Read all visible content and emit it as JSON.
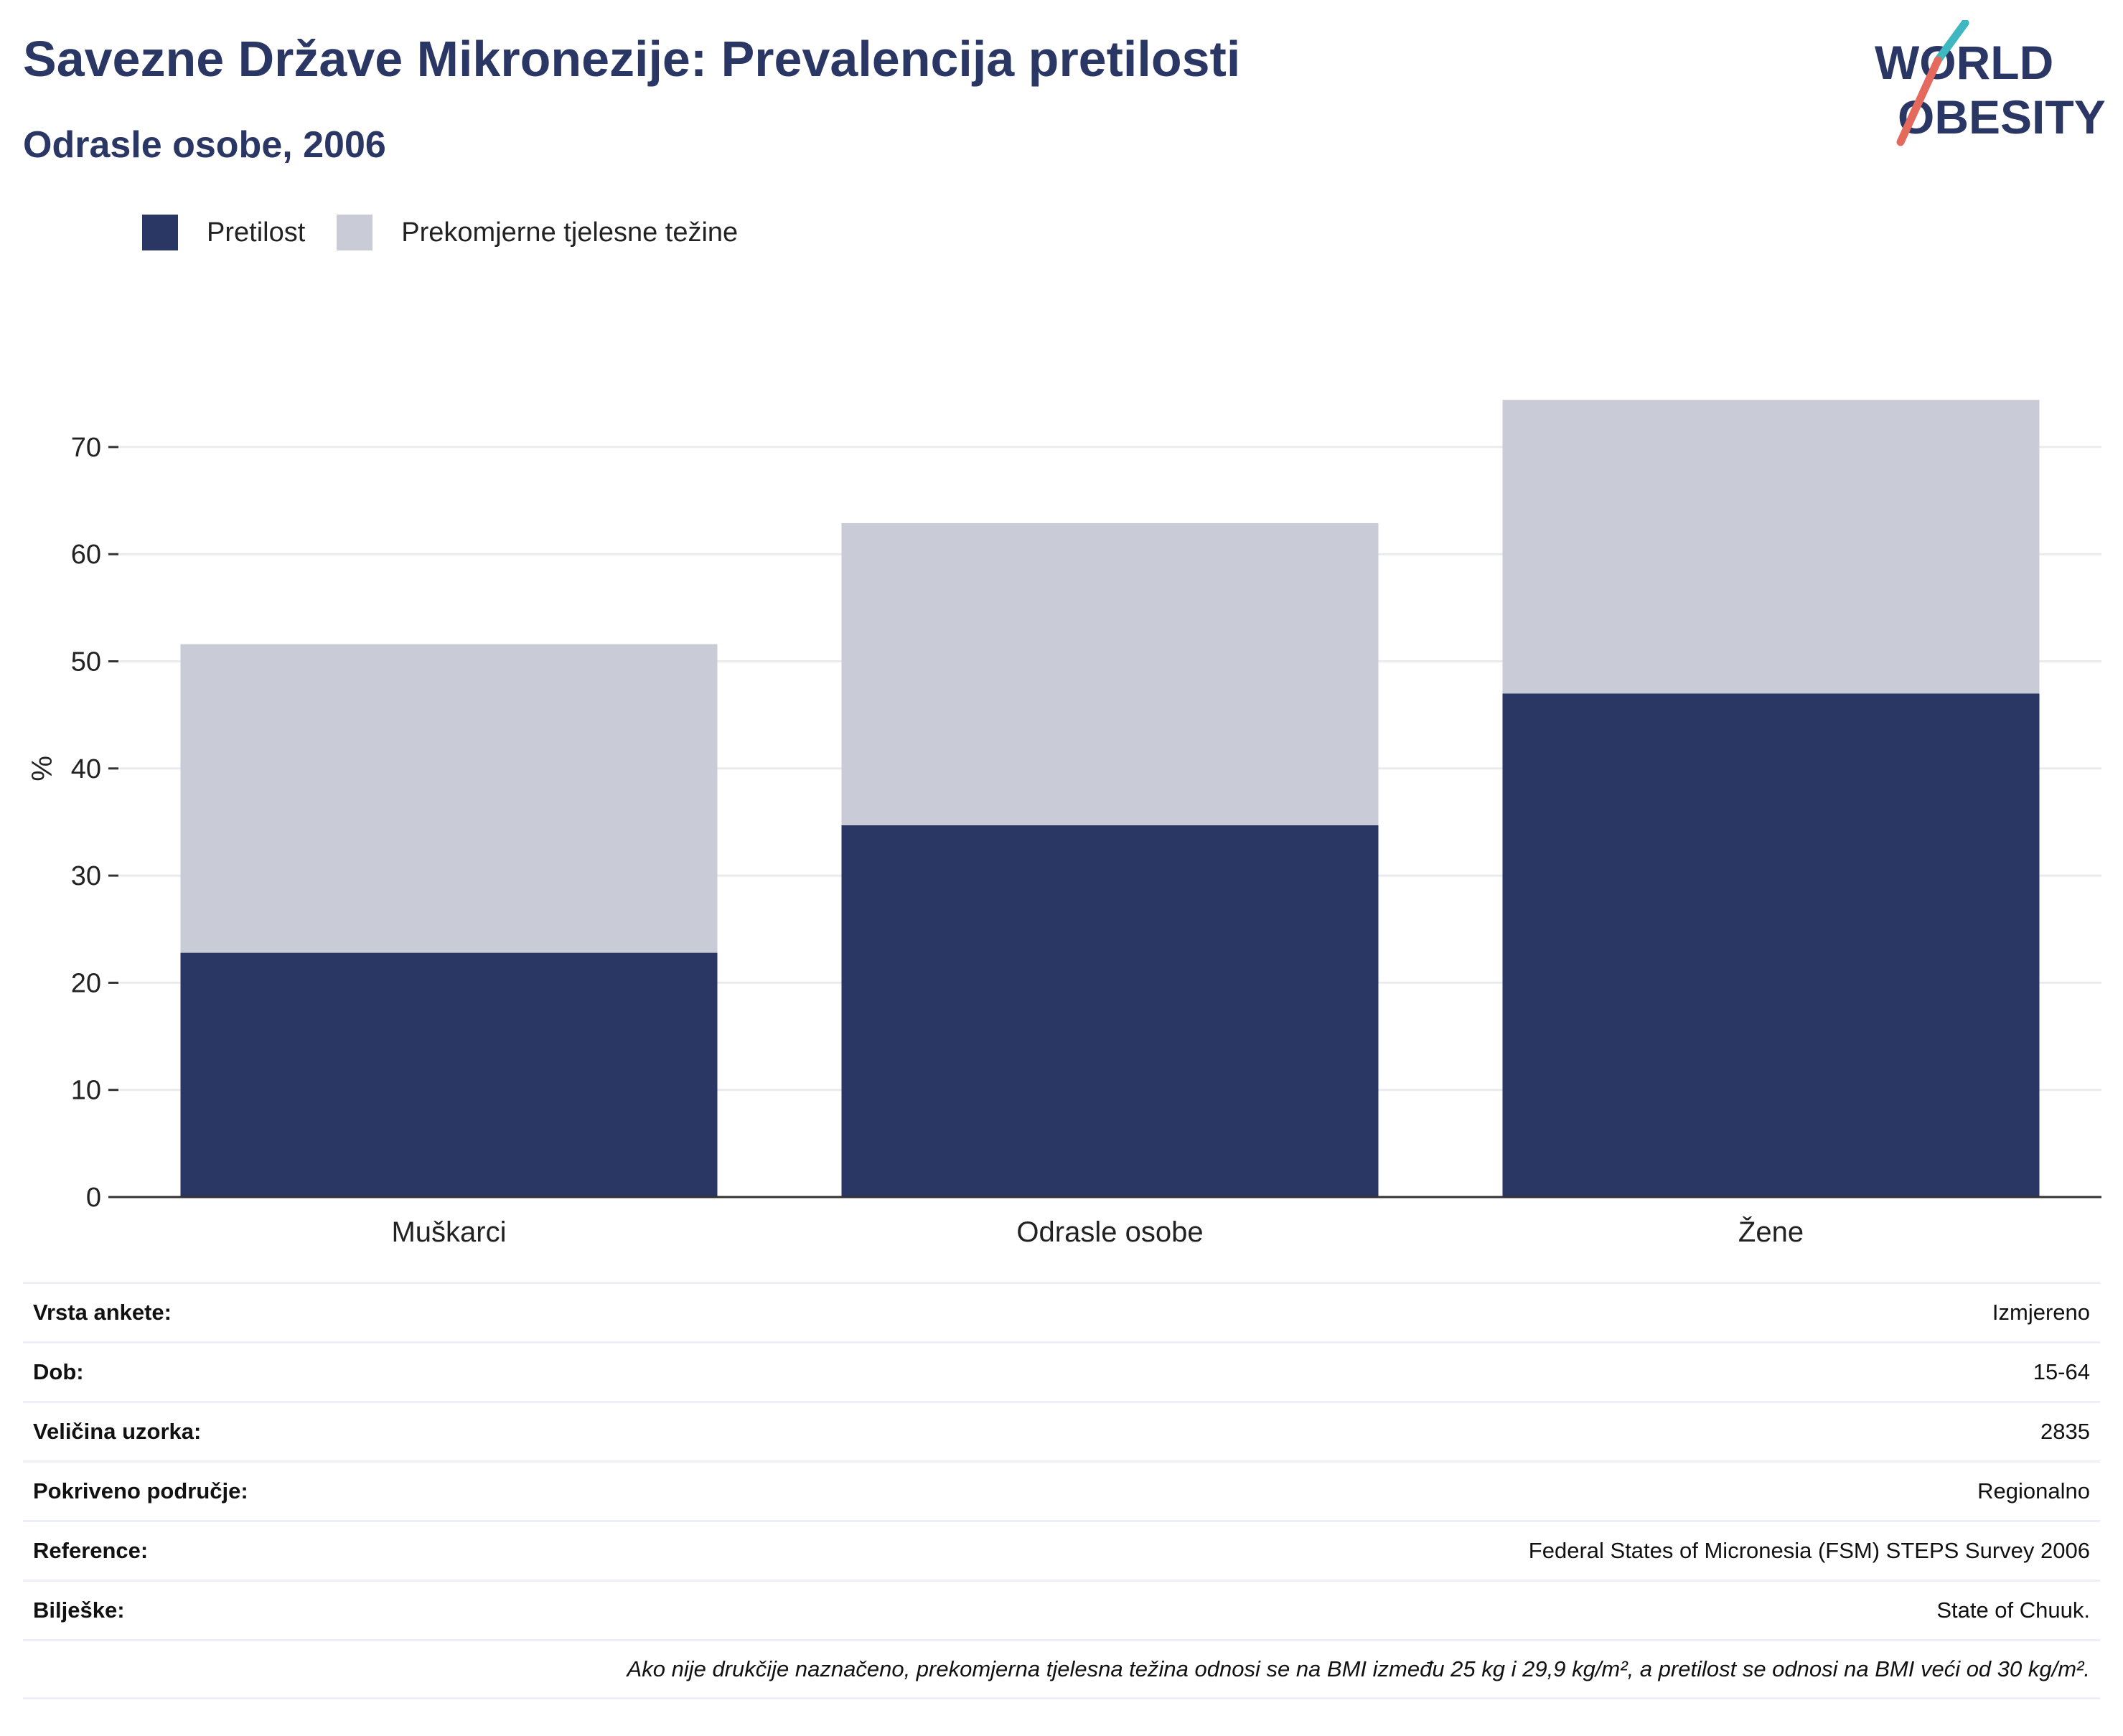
{
  "header": {
    "title": "Savezne Države Mikronezije: Prevalencija pretilosti",
    "subtitle": "Odrasle osobe, 2006"
  },
  "logo": {
    "line1": "WORLD",
    "line2": "OBESITY"
  },
  "colors": {
    "obesity": "#2a3664",
    "overweight": "#c9cbd6",
    "logo_teal": "#3fb7c0",
    "logo_coral": "#e36a5c",
    "gridline": "#e9ebef",
    "axis": "#333333"
  },
  "legend": [
    {
      "label": "Pretilost",
      "color": "#2a3664"
    },
    {
      "label": "Prekomjerne tjelesne težine",
      "color": "#c9cbd6"
    }
  ],
  "chart_data": {
    "type": "bar",
    "stacked": true,
    "categories": [
      "Muškarci",
      "Odrasle osobe",
      "Žene"
    ],
    "series": [
      {
        "name": "Pretilost",
        "values": [
          22.8,
          34.7,
          47.0
        ]
      },
      {
        "name": "Prekomjerne tjelesne težine",
        "values": [
          28.8,
          28.2,
          27.4
        ]
      }
    ],
    "ylabel": "%",
    "ylim": [
      0,
      80
    ],
    "yticks": [
      0,
      10,
      20,
      30,
      40,
      50,
      60,
      70
    ],
    "grid": true,
    "legend_position": "top-left"
  },
  "info": {
    "rows": [
      {
        "key": "Vrsta ankete:",
        "value": "Izmjereno"
      },
      {
        "key": "Dob:",
        "value": "15-64"
      },
      {
        "key": "Veličina uzorka:",
        "value": "2835"
      },
      {
        "key": "Pokriveno područje:",
        "value": "Regionalno"
      },
      {
        "key": "Reference:",
        "value": "Federal States of Micronesia (FSM) STEPS Survey 2006"
      },
      {
        "key": "Bilješke:",
        "value": "State of Chuuk."
      }
    ],
    "note": "Ako nije drukčije naznačeno, prekomjerna tjelesna težina odnosi se na BMI između 25 kg i 29,9 kg/m², a pretilost se odnosi na BMI veći od 30 kg/m²."
  }
}
